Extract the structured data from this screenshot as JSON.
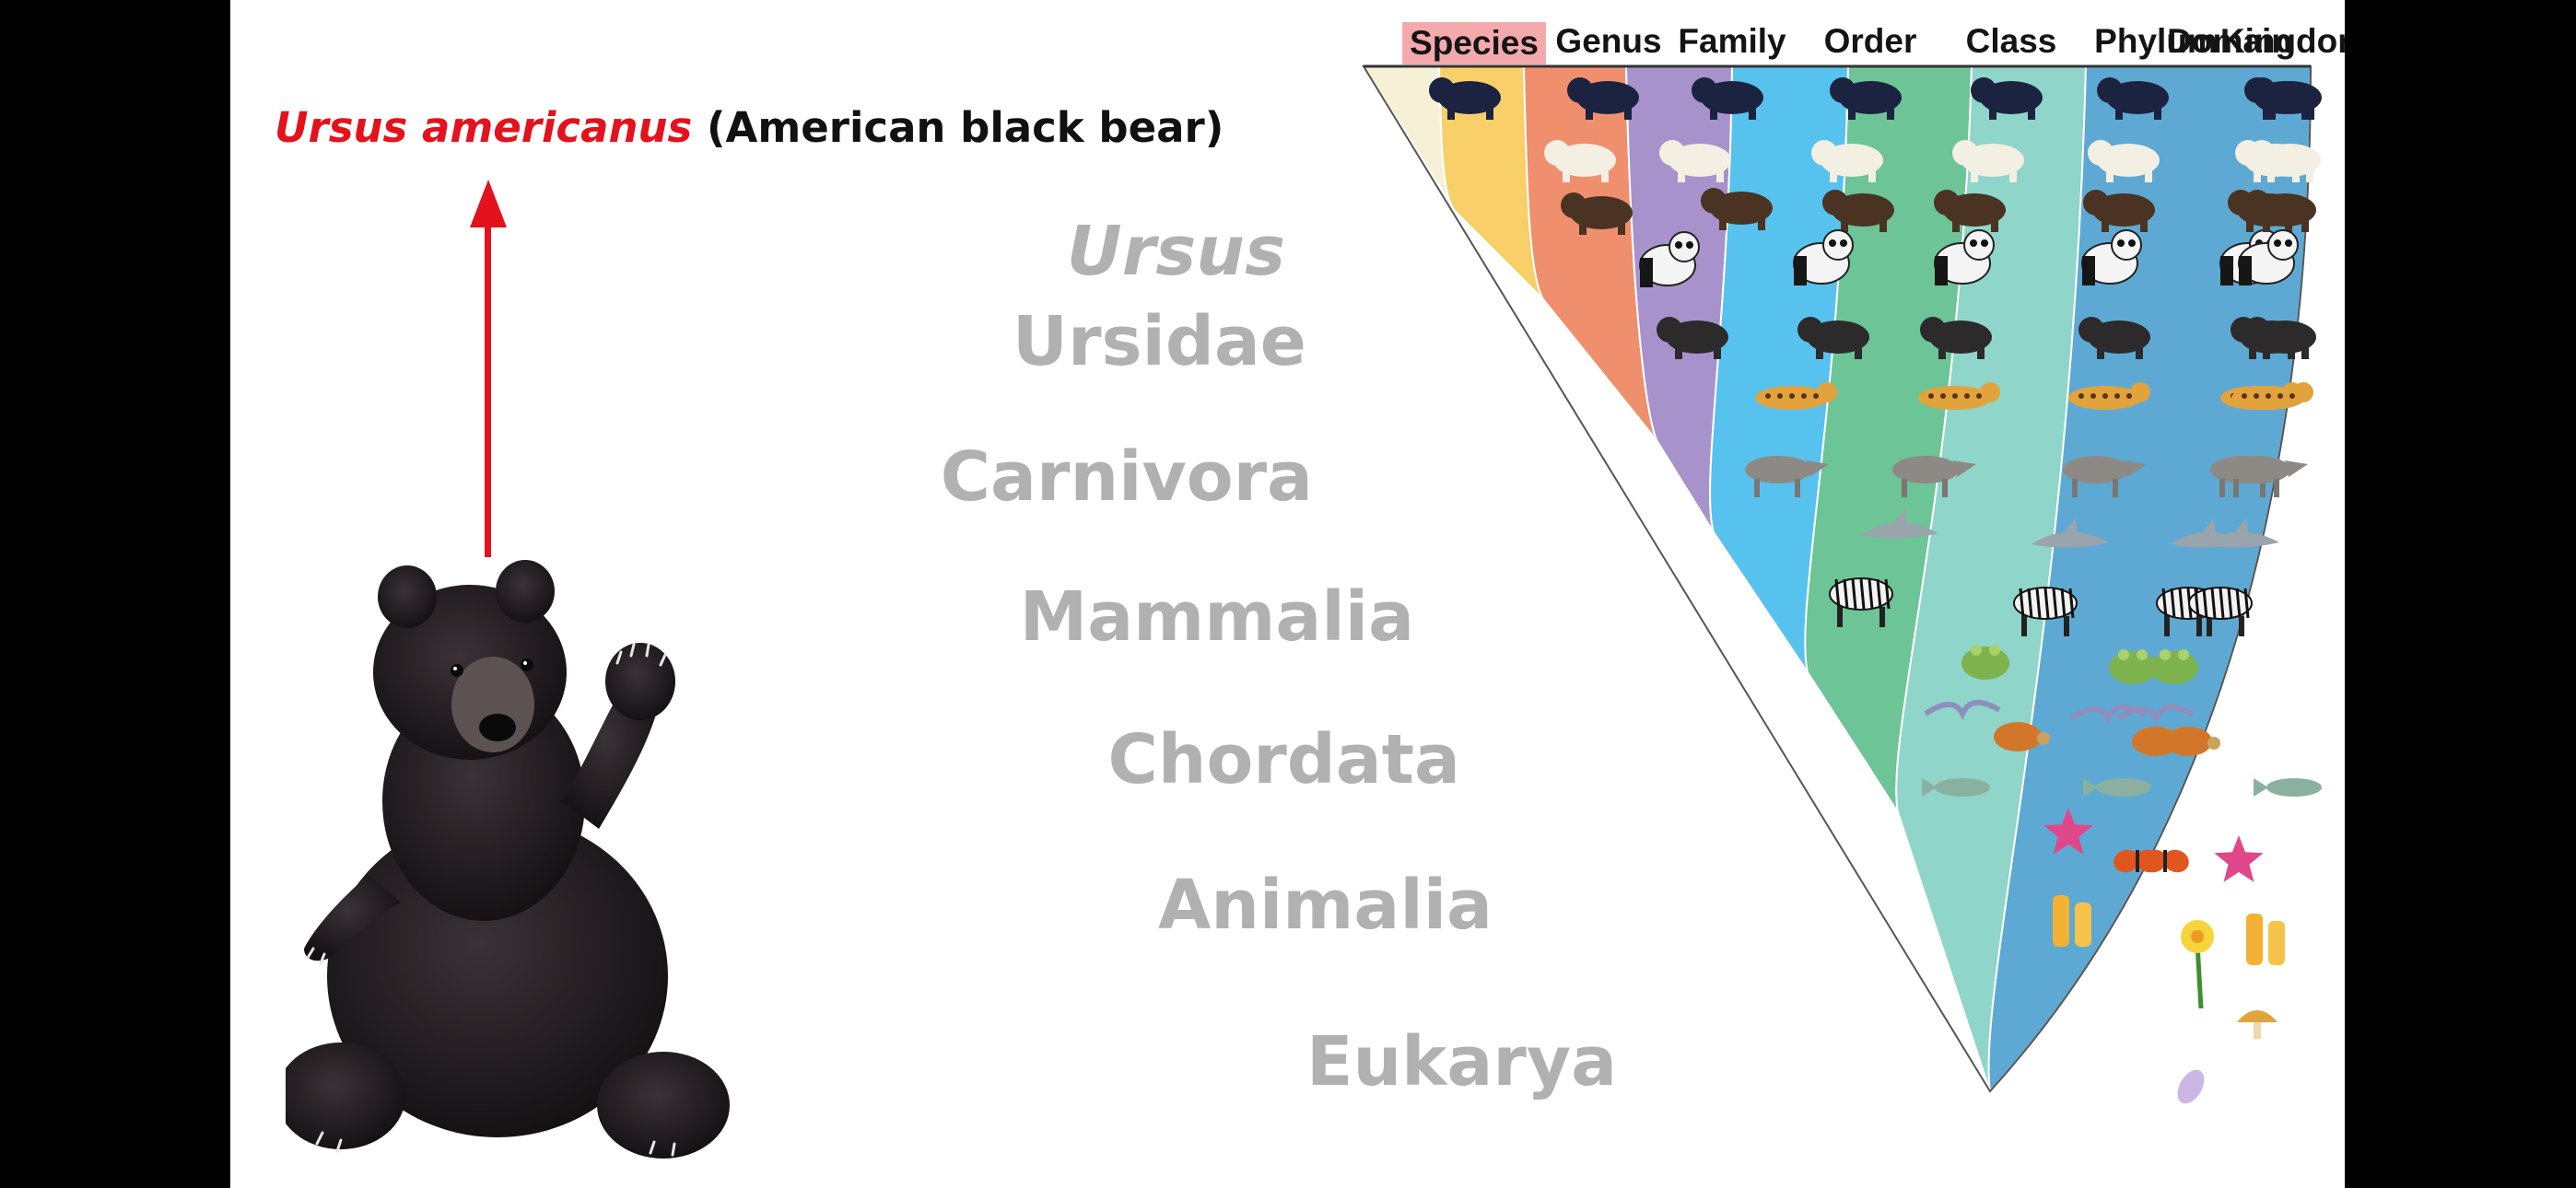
{
  "title": {
    "scientific_name": "Ursus americanus",
    "common_name": "(American black bear)"
  },
  "column_headers": [
    {
      "label": "Species",
      "highlighted": true
    },
    {
      "label": "Genus",
      "highlighted": false
    },
    {
      "label": "Family",
      "highlighted": false
    },
    {
      "label": "Order",
      "highlighted": false
    },
    {
      "label": "Class",
      "highlighted": false
    },
    {
      "label": "Phylum",
      "highlighted": false
    },
    {
      "label": "Kingdom",
      "highlighted": false
    },
    {
      "label": "Domain",
      "highlighted": false
    }
  ],
  "rank_labels": [
    {
      "text": "Ursus",
      "italic": true
    },
    {
      "text": "Ursidae",
      "italic": false
    },
    {
      "text": "Carnivora",
      "italic": false
    },
    {
      "text": "Mammalia",
      "italic": false
    },
    {
      "text": "Chordata",
      "italic": false
    },
    {
      "text": "Animalia",
      "italic": false
    },
    {
      "text": "Eukarya",
      "italic": false
    }
  ],
  "band_colors": [
    "#f6f1d6",
    "#f9cf6a",
    "#ef8f6d",
    "#a792cc",
    "#58c2ee",
    "#6dc496",
    "#8fd5c9",
    "#5ea9d3"
  ],
  "colors": {
    "accent_red": "#e3121c",
    "label_gray": "#b1b1b1",
    "header_highlight": "#f4a9ad"
  },
  "organisms": [
    "black-bear",
    "polar-bear",
    "brown-bear",
    "giant-panda",
    "spectacled-bear",
    "jaguar",
    "gray-wolf",
    "dolphin",
    "zebra",
    "frog",
    "pelican",
    "turtle",
    "fish",
    "starfish",
    "butterfly",
    "sponge",
    "daffodil",
    "mushroom",
    "protist"
  ]
}
